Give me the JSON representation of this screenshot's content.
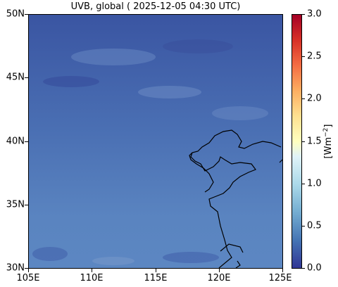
{
  "title": "UVB, global ( 2025-12-05 04:30 UTC)",
  "y_ticks": [
    "50N",
    "45N",
    "40N",
    "35N",
    "30N"
  ],
  "x_ticks": [
    "105E",
    "110E",
    "115E",
    "120E",
    "125E"
  ],
  "colorbar": {
    "ticks": [
      "3.0",
      "2.5",
      "2.0",
      "1.5",
      "1.0",
      "0.5",
      "0.0"
    ],
    "unit": "[Wm",
    "unit_exp": "−2",
    "unit_close": "]",
    "range": [
      0.0,
      3.0
    ],
    "colormap": "RdYlBu_r"
  },
  "map": {
    "lon_range": [
      105,
      125
    ],
    "lat_range": [
      30,
      50
    ],
    "field_value_range": [
      0.0,
      0.6
    ],
    "colors": {
      "north": "#3c5aa6",
      "south": "#5a86c0",
      "coastline": "#000000"
    }
  }
}
